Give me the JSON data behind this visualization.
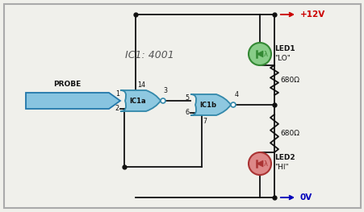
{
  "bg_color": "#f0f0eb",
  "border_color": "#aaaaaa",
  "wire_color": "#111111",
  "gate_fill": "#8ec8e0",
  "gate_edge": "#3388aa",
  "led_green_fill": "#88cc88",
  "led_green_edge": "#338833",
  "led_green_inner": "#55aa55",
  "led_red_fill": "#dd8888",
  "led_red_edge": "#aa3333",
  "led_red_inner": "#bb5555",
  "power_color": "#cc0000",
  "gnd_color": "#0000bb",
  "probe_fill": "#88c4e0",
  "probe_edge": "#2277aa",
  "title": "IC1: 4001",
  "probe_label": "PROBE",
  "ic1a_label": "IC1a",
  "ic1b_label": "IC1b",
  "led1_label": "LED1",
  "led1_name": "\"LO\"",
  "led2_label": "LED2",
  "led2_name": "\"HI\"",
  "res_label": "680Ω",
  "vcc_label": "+12V",
  "gnd_label_text": "0V",
  "pin1": "1",
  "pin2": "2",
  "pin3": "3",
  "pin4": "4",
  "pin5": "5",
  "pin6": "6",
  "pin7": "7",
  "pin14": "14",
  "figw": 4.52,
  "figh": 2.63,
  "dpi": 100
}
